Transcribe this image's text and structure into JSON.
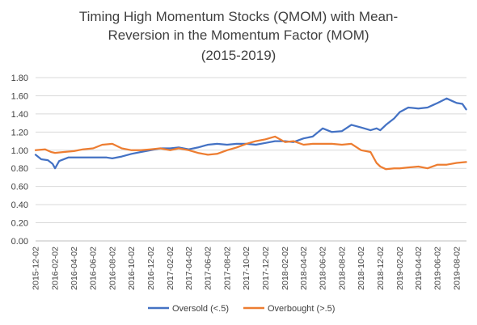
{
  "chart_data": {
    "type": "line",
    "title_lines": [
      "Timing High Momentum Stocks (QMOM) with Mean-",
      "Reversion in the Momentum Factor (MOM)",
      "(2015-2019)"
    ],
    "xlabel": "",
    "ylabel": "",
    "ylim": [
      0,
      1.8
    ],
    "y_ticks": [
      "1.80",
      "1.60",
      "1.40",
      "1.20",
      "1.00",
      "0.80",
      "0.60",
      "0.40",
      "0.20",
      "0.00"
    ],
    "x_tick_labels": [
      "2015-12-02",
      "2016-02-02",
      "2016-04-02",
      "2016-06-02",
      "2016-08-02",
      "2016-10-02",
      "2016-12-02",
      "2017-02-02",
      "2017-04-02",
      "2017-06-02",
      "2017-08-02",
      "2017-10-02",
      "2017-12-02",
      "2018-02-02",
      "2018-04-02",
      "2018-06-02",
      "2018-08-02",
      "2018-10-02",
      "2018-12-02",
      "2019-02-02",
      "2019-04-02",
      "2019-06-02",
      "2019-08-02"
    ],
    "grid": true,
    "legend_position": "bottom",
    "series": [
      {
        "name": "Oversold (<.5)",
        "color": "#4472C4",
        "points": [
          [
            "2015-12-02",
            0.95
          ],
          [
            "2015-12-20",
            0.9
          ],
          [
            "2016-01-10",
            0.89
          ],
          [
            "2016-01-25",
            0.85
          ],
          [
            "2016-02-02",
            0.8
          ],
          [
            "2016-02-15",
            0.88
          ],
          [
            "2016-03-15",
            0.92
          ],
          [
            "2016-05-01",
            0.92
          ],
          [
            "2016-06-02",
            0.92
          ],
          [
            "2016-07-15",
            0.92
          ],
          [
            "2016-08-02",
            0.91
          ],
          [
            "2016-09-01",
            0.93
          ],
          [
            "2016-10-02",
            0.96
          ],
          [
            "2016-11-01",
            0.98
          ],
          [
            "2016-12-02",
            1.0
          ],
          [
            "2017-01-01",
            1.02
          ],
          [
            "2017-02-02",
            1.02
          ],
          [
            "2017-03-01",
            1.03
          ],
          [
            "2017-04-02",
            1.01
          ],
          [
            "2017-05-01",
            1.03
          ],
          [
            "2017-06-02",
            1.06
          ],
          [
            "2017-07-01",
            1.07
          ],
          [
            "2017-08-02",
            1.06
          ],
          [
            "2017-09-01",
            1.07
          ],
          [
            "2017-10-02",
            1.07
          ],
          [
            "2017-11-01",
            1.06
          ],
          [
            "2017-12-02",
            1.08
          ],
          [
            "2018-01-01",
            1.1
          ],
          [
            "2018-02-02",
            1.1
          ],
          [
            "2018-03-01",
            1.09
          ],
          [
            "2018-04-02",
            1.13
          ],
          [
            "2018-05-01",
            1.15
          ],
          [
            "2018-06-02",
            1.24
          ],
          [
            "2018-07-01",
            1.2
          ],
          [
            "2018-08-02",
            1.21
          ],
          [
            "2018-09-01",
            1.28
          ],
          [
            "2018-10-02",
            1.25
          ],
          [
            "2018-11-01",
            1.22
          ],
          [
            "2018-11-20",
            1.24
          ],
          [
            "2018-12-02",
            1.22
          ],
          [
            "2018-12-20",
            1.28
          ],
          [
            "2019-01-15",
            1.35
          ],
          [
            "2019-02-02",
            1.42
          ],
          [
            "2019-03-01",
            1.47
          ],
          [
            "2019-04-02",
            1.46
          ],
          [
            "2019-05-01",
            1.47
          ],
          [
            "2019-05-20",
            1.5
          ],
          [
            "2019-06-02",
            1.52
          ],
          [
            "2019-07-01",
            1.57
          ],
          [
            "2019-07-20",
            1.54
          ],
          [
            "2019-08-02",
            1.52
          ],
          [
            "2019-08-20",
            1.51
          ],
          [
            "2019-09-01",
            1.45
          ]
        ]
      },
      {
        "name": "Overbought (>.5)",
        "color": "#ED7D31",
        "points": [
          [
            "2015-12-02",
            1.0
          ],
          [
            "2016-01-01",
            1.01
          ],
          [
            "2016-01-20",
            0.98
          ],
          [
            "2016-02-02",
            0.97
          ],
          [
            "2016-03-01",
            0.98
          ],
          [
            "2016-04-02",
            0.99
          ],
          [
            "2016-05-01",
            1.01
          ],
          [
            "2016-06-02",
            1.02
          ],
          [
            "2016-07-01",
            1.06
          ],
          [
            "2016-08-02",
            1.07
          ],
          [
            "2016-09-01",
            1.02
          ],
          [
            "2016-10-02",
            1.0
          ],
          [
            "2016-11-01",
            1.0
          ],
          [
            "2016-12-02",
            1.01
          ],
          [
            "2017-01-01",
            1.02
          ],
          [
            "2017-02-02",
            1.0
          ],
          [
            "2017-03-01",
            1.02
          ],
          [
            "2017-04-02",
            1.0
          ],
          [
            "2017-05-01",
            0.97
          ],
          [
            "2017-06-02",
            0.95
          ],
          [
            "2017-07-01",
            0.96
          ],
          [
            "2017-08-02",
            1.0
          ],
          [
            "2017-09-01",
            1.03
          ],
          [
            "2017-10-02",
            1.07
          ],
          [
            "2017-11-01",
            1.1
          ],
          [
            "2017-12-02",
            1.12
          ],
          [
            "2018-01-01",
            1.15
          ],
          [
            "2018-02-02",
            1.09
          ],
          [
            "2018-03-01",
            1.1
          ],
          [
            "2018-04-02",
            1.06
          ],
          [
            "2018-05-01",
            1.07
          ],
          [
            "2018-06-02",
            1.07
          ],
          [
            "2018-07-01",
            1.07
          ],
          [
            "2018-08-02",
            1.06
          ],
          [
            "2018-09-01",
            1.07
          ],
          [
            "2018-10-02",
            1.0
          ],
          [
            "2018-11-01",
            0.98
          ],
          [
            "2018-11-20",
            0.86
          ],
          [
            "2018-12-02",
            0.82
          ],
          [
            "2018-12-20",
            0.79
          ],
          [
            "2019-01-15",
            0.8
          ],
          [
            "2019-02-02",
            0.8
          ],
          [
            "2019-03-01",
            0.81
          ],
          [
            "2019-04-02",
            0.82
          ],
          [
            "2019-05-01",
            0.8
          ],
          [
            "2019-06-02",
            0.84
          ],
          [
            "2019-07-01",
            0.84
          ],
          [
            "2019-08-02",
            0.86
          ],
          [
            "2019-09-01",
            0.87
          ]
        ]
      }
    ]
  }
}
